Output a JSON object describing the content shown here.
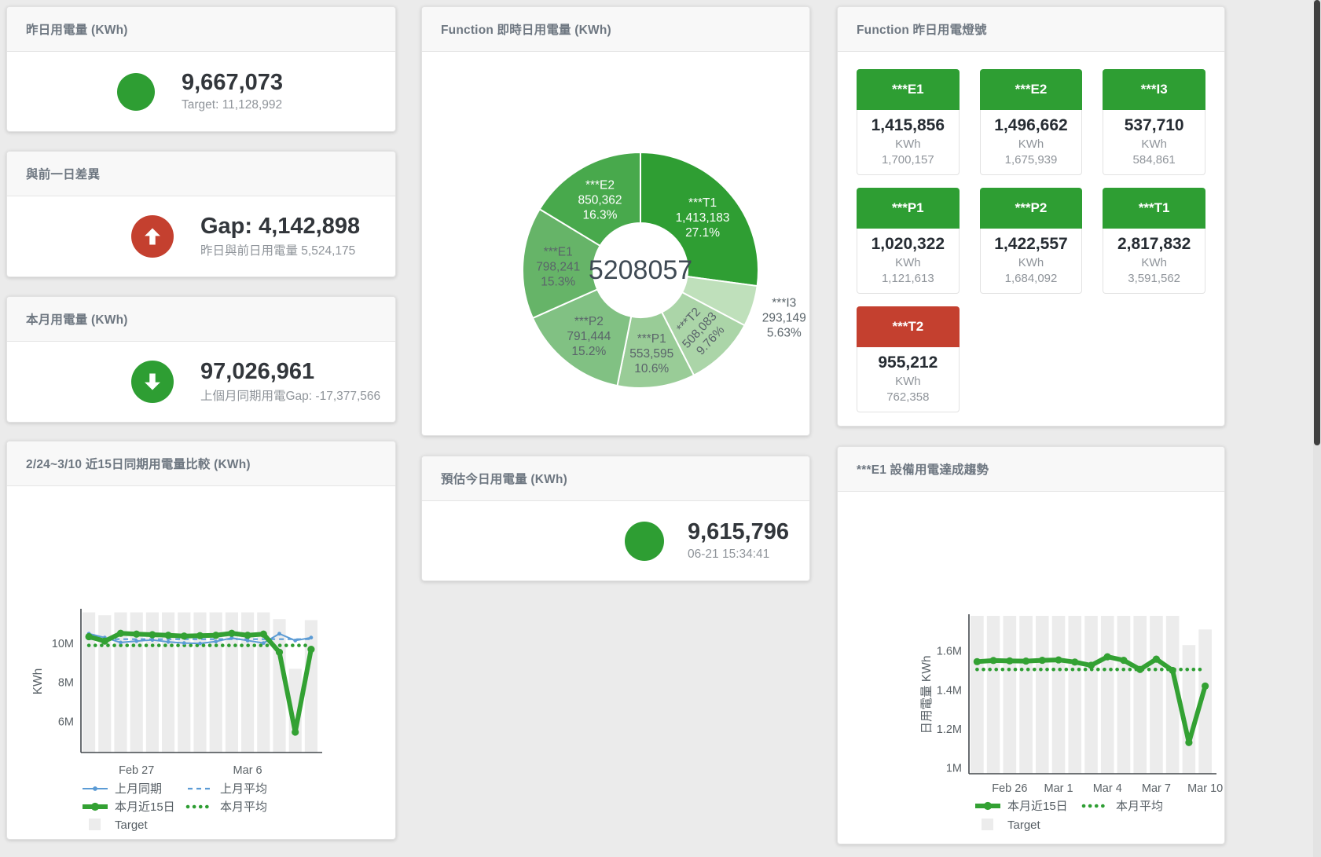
{
  "colors": {
    "green": "#2e9e33",
    "red": "#c4402f",
    "blue": "#5b9bd5",
    "target_bar": "#ececec",
    "value_text": "#32363b",
    "muted_text": "#8f949a",
    "header_text": "#6e7781"
  },
  "cards": {
    "yesterday": {
      "title": "昨日用電量 (KWh)",
      "value": "9,667,073",
      "subtitle": "Target: 11,128,992"
    },
    "day_gap": {
      "title": "與前一日差異",
      "value": "Gap: 4,142,898",
      "subtitle": "昨日與前日用電量 5,524,175"
    },
    "month": {
      "title": "本月用電量 (KWh)",
      "value": "97,026,961",
      "subtitle": "上個月同期用電Gap: -17,377,566"
    },
    "realtime_donut": {
      "title": "Function 即時日用電量 (KWh)"
    },
    "forecast": {
      "title": "預估今日用電量 (KWh)",
      "value": "9,615,796",
      "subtitle": "06-21 15:34:41"
    },
    "lights": {
      "title": "Function 昨日用電燈號",
      "unit_label": "KWh",
      "tiles": [
        {
          "label": "***E1",
          "value": "1,415,856",
          "target": "1,700,157",
          "status": "green"
        },
        {
          "label": "***E2",
          "value": "1,496,662",
          "target": "1,675,939",
          "status": "green"
        },
        {
          "label": "***I3",
          "value": "537,710",
          "target": "584,861",
          "status": "green"
        },
        {
          "label": "***P1",
          "value": "1,020,322",
          "target": "1,121,613",
          "status": "green"
        },
        {
          "label": "***P2",
          "value": "1,422,557",
          "target": "1,684,092",
          "status": "green"
        },
        {
          "label": "***T1",
          "value": "2,817,832",
          "target": "3,591,562",
          "status": "green"
        },
        {
          "label": "***T2",
          "value": "955,212",
          "target": "762,358",
          "status": "red"
        }
      ]
    },
    "compare": {
      "title": "2/24~3/10 近15日同期用電量比較 (KWh)"
    },
    "trend": {
      "title": "***E1 設備用電達成趨勢"
    }
  },
  "chart_data": [
    {
      "id": "realtime_donut",
      "type": "pie",
      "title": "Function 即時日用電量 (KWh)",
      "donut": true,
      "center_label": "5208057",
      "slices": [
        {
          "name": "***T1",
          "value": 1413183,
          "value_label": "1,413,183",
          "pct_label": "27.1%",
          "color": "#2f9e33",
          "label_color": "#ffffff",
          "label_pos": "inside"
        },
        {
          "name": "***I3",
          "value": 293149,
          "value_label": "293,149",
          "pct_label": "5.63%",
          "color": "#bfe0bb",
          "label_color": "#5a646a",
          "label_pos": "outside"
        },
        {
          "name": "***T2",
          "value": 508083,
          "value_label": "508,083",
          "pct_label": "9.76%",
          "color": "#abd5a8",
          "label_color": "#5a646a",
          "label_pos": "inside",
          "label_rotate": -47
        },
        {
          "name": "***P1",
          "value": 553595,
          "value_label": "553,595",
          "pct_label": "10.6%",
          "color": "#99cc97",
          "label_color": "#5a646a",
          "label_pos": "inside"
        },
        {
          "name": "***P2",
          "value": 791444,
          "value_label": "791,444",
          "pct_label": "15.2%",
          "color": "#81c183",
          "label_color": "#5a646a",
          "label_pos": "inside"
        },
        {
          "name": "***E1",
          "value": 798241,
          "value_label": "798,241",
          "pct_label": "15.3%",
          "color": "#66b468",
          "label_color": "#5a646a",
          "label_pos": "inside"
        },
        {
          "name": "***E2",
          "value": 850362,
          "value_label": "850,362",
          "pct_label": "16.3%",
          "color": "#48a94c",
          "label_color": "#ffffff",
          "label_pos": "inside"
        }
      ]
    },
    {
      "id": "compare",
      "type": "line+bar",
      "title": "2/24~3/10 近15日同期用電量比較 (KWh)",
      "ylabel": "KWh",
      "categories": [
        "2/24",
        "2/25",
        "2/26",
        "2/27",
        "2/28",
        "3/1",
        "3/2",
        "3/3",
        "3/4",
        "3/5",
        "3/6",
        "3/7",
        "3/8",
        "3/9",
        "3/10"
      ],
      "x_tick_labels": [
        {
          "index": 3,
          "label": "Feb 27"
        },
        {
          "index": 10,
          "label": "Mar 6"
        }
      ],
      "ylim": [
        4400000,
        11700000
      ],
      "y_ticks": [
        {
          "value": 6000000,
          "label": "6M"
        },
        {
          "value": 8000000,
          "label": "8M"
        },
        {
          "value": 10000000,
          "label": "10M"
        }
      ],
      "grid": false,
      "legend_rows": [
        [
          "上月同期",
          "上月平均"
        ],
        [
          "本月近15日",
          "本月平均"
        ],
        [
          "Target"
        ]
      ],
      "series": [
        {
          "name": "Target",
          "type": "bar",
          "color": "#ececec",
          "values": [
            11600000,
            11450000,
            11600000,
            11600000,
            11600000,
            11600000,
            11600000,
            11600000,
            11600000,
            11600000,
            11600000,
            11600000,
            11250000,
            8700000,
            11200000
          ]
        },
        {
          "name": "上月同期",
          "type": "line",
          "style": "thin",
          "color": "#5b9bd5",
          "values": [
            10500000,
            10300000,
            10050000,
            10120000,
            10180000,
            10080000,
            10020000,
            10000000,
            10100000,
            10280000,
            10150000,
            10020000,
            10500000,
            10150000,
            10300000
          ]
        },
        {
          "name": "上月平均",
          "type": "line",
          "style": "dashed",
          "color": "#5b9bd5",
          "constant": 10220000
        },
        {
          "name": "本月近15日",
          "type": "line",
          "style": "thick",
          "color": "#33a133",
          "values": [
            10350000,
            10120000,
            10520000,
            10480000,
            10450000,
            10420000,
            10380000,
            10400000,
            10420000,
            10520000,
            10420000,
            10480000,
            9550000,
            5450000,
            9700000
          ]
        },
        {
          "name": "本月平均",
          "type": "line",
          "style": "dotted",
          "color": "#2e9e33",
          "constant": 9900000
        }
      ]
    },
    {
      "id": "trend",
      "type": "line+bar",
      "title": "***E1 設備用電達成趨勢",
      "ylabel": "日用電量 KWh",
      "categories": [
        "2/24",
        "2/25",
        "2/26",
        "2/27",
        "2/28",
        "3/1",
        "3/2",
        "3/3",
        "3/4",
        "3/5",
        "3/6",
        "3/7",
        "3/8",
        "3/9",
        "3/10"
      ],
      "x_tick_labels": [
        {
          "index": 2,
          "label": "Feb 26"
        },
        {
          "index": 5,
          "label": "Mar 1"
        },
        {
          "index": 8,
          "label": "Mar 4"
        },
        {
          "index": 11,
          "label": "Mar 7"
        },
        {
          "index": 14,
          "label": "Mar 10"
        }
      ],
      "ylim": [
        970000,
        1780000
      ],
      "y_ticks": [
        {
          "value": 1000000,
          "label": "1M"
        },
        {
          "value": 1200000,
          "label": "1.2M"
        },
        {
          "value": 1400000,
          "label": "1.4M"
        },
        {
          "value": 1600000,
          "label": "1.6M"
        }
      ],
      "grid": false,
      "legend_rows": [
        [
          "本月近15日",
          "本月平均"
        ],
        [
          "Target"
        ]
      ],
      "series": [
        {
          "name": "Target",
          "type": "bar",
          "color": "#ececec",
          "values": [
            1780000,
            1780000,
            1780000,
            1780000,
            1780000,
            1780000,
            1780000,
            1780000,
            1780000,
            1780000,
            1780000,
            1780000,
            1780000,
            1630000,
            1710000
          ]
        },
        {
          "name": "本月近15日",
          "type": "line",
          "style": "thick",
          "color": "#33a133",
          "values": [
            1545000,
            1551000,
            1549000,
            1548000,
            1552000,
            1554000,
            1543000,
            1526000,
            1570000,
            1552000,
            1505000,
            1558000,
            1500000,
            1130000,
            1420000
          ]
        },
        {
          "name": "本月平均",
          "type": "line",
          "style": "dotted",
          "color": "#2e9e33",
          "constant": 1505000
        }
      ]
    }
  ]
}
